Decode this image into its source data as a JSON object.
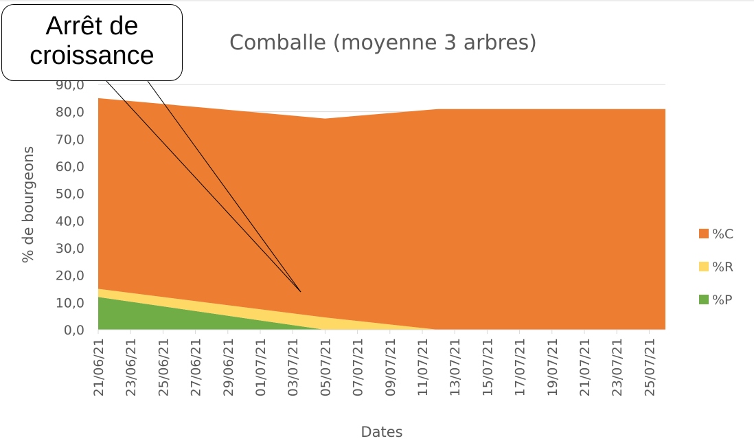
{
  "chart_data": {
    "type": "stacked_area",
    "title": "Comballe (moyenne 3 arbres)",
    "xlabel": "Dates",
    "ylabel": "% de bourgeons",
    "annotation": "Arrêt de croissance",
    "x": [
      "21/06/21",
      "05/07/21",
      "12/07/21",
      "19/07/21",
      "26/07/21"
    ],
    "xlim": [
      "21/06/21",
      "26/07/21"
    ],
    "xticks": [
      "21/06/21",
      "23/06/21",
      "25/06/21",
      "27/06/21",
      "29/06/21",
      "01/07/21",
      "03/07/21",
      "05/07/21",
      "07/07/21",
      "09/07/21",
      "11/07/21",
      "13/07/21",
      "15/07/21",
      "17/07/21",
      "19/07/21",
      "21/07/21",
      "23/07/21",
      "25/07/21"
    ],
    "ylim": [
      0,
      90
    ],
    "yticks": [
      {
        "value": 0,
        "label": "0,0"
      },
      {
        "value": 10,
        "label": "10,0"
      },
      {
        "value": 20,
        "label": "20,0"
      },
      {
        "value": 30,
        "label": "30,0"
      },
      {
        "value": 40,
        "label": "40,0"
      },
      {
        "value": 50,
        "label": "50,0"
      },
      {
        "value": 60,
        "label": "60,0"
      },
      {
        "value": 70,
        "label": "70,0"
      },
      {
        "value": 80,
        "label": "80,0"
      },
      {
        "value": 90,
        "label": "90,0"
      }
    ],
    "grid": true,
    "legend": "right",
    "series": [
      {
        "name": "%P",
        "color": "#70ad47",
        "values": [
          12,
          0,
          0,
          0,
          0
        ]
      },
      {
        "name": "%R",
        "color": "#ffd966",
        "values": [
          3,
          4.5,
          0,
          0,
          0
        ]
      },
      {
        "name": "%C",
        "color": "#ed7d31",
        "values": [
          70,
          73,
          81,
          81,
          81
        ]
      }
    ]
  }
}
